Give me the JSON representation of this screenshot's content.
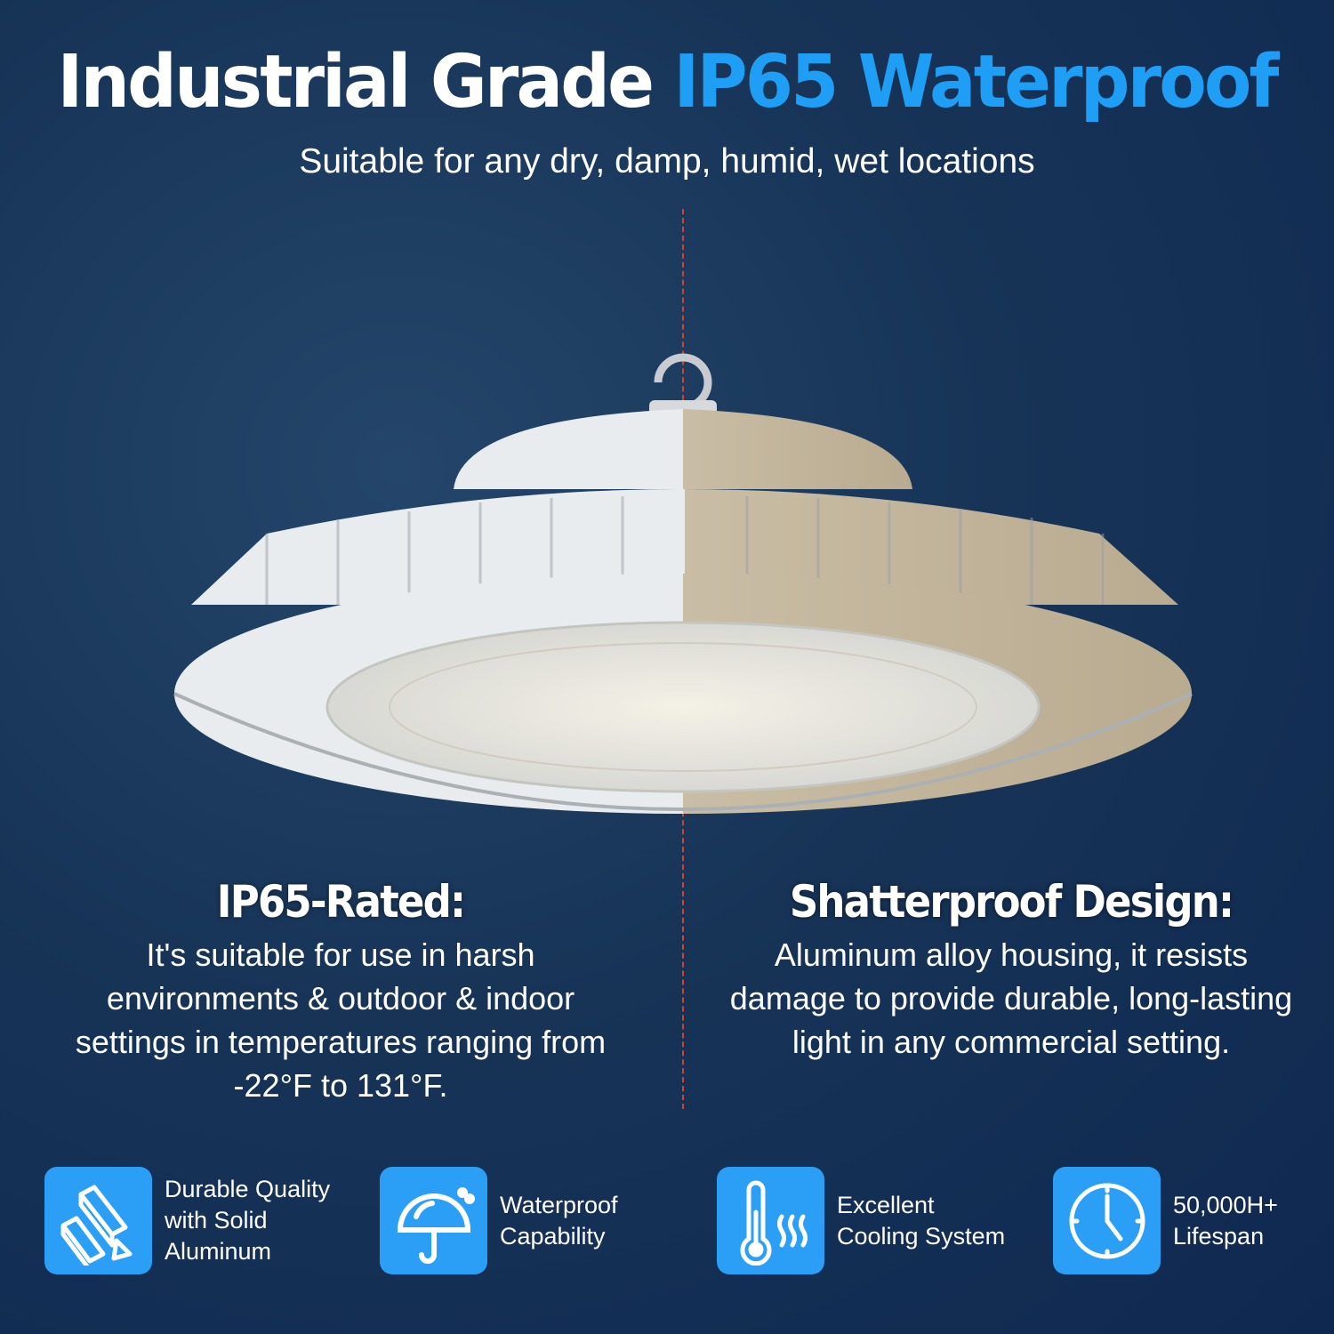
{
  "header": {
    "title_white": "Industrial Grade",
    "title_blue": "IP65 Waterproof",
    "subtitle": "Suitable for any dry, damp, humid, wet locations"
  },
  "colors": {
    "accent": "#1e9ff5",
    "icon_bg": "#2a9ff5",
    "divider": "#d9402a",
    "background": "#173457"
  },
  "left": {
    "heading": "IP65-Rated:",
    "body": "It's suitable for use in harsh environments & outdoor & indoor settings in temperatures ranging from -22°F to 131°F."
  },
  "right": {
    "heading": "Shatterproof Design:",
    "body": "Aluminum alloy housing, it resists damage to provide durable, long-lasting light in any commercial setting."
  },
  "features": [
    {
      "icon": "aluminum-ingots-icon",
      "label": "Durable Quality\nwith Solid\nAluminum"
    },
    {
      "icon": "umbrella-icon",
      "label": "Waterproof\nCapability"
    },
    {
      "icon": "thermometer-icon",
      "label": "Excellent\nCooling System"
    },
    {
      "icon": "clock-icon",
      "label": "50,000H+\nLifespan"
    }
  ]
}
